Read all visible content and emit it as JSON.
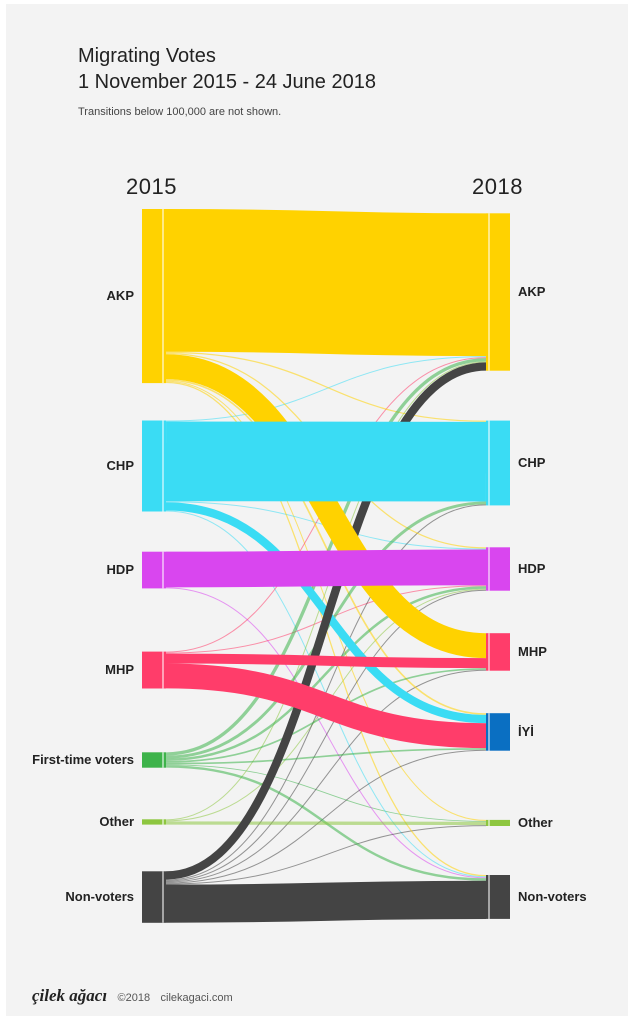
{
  "header": {
    "title_line1": "Migrating Votes",
    "title_line2": "1 November 2015 - 24 June 2018",
    "subtitle": "Transitions below 100,000 are not shown."
  },
  "footer": {
    "logo": "çilek ağacı",
    "copyright": "©2018",
    "site": "cilekagaci.com"
  },
  "chart_data": {
    "type": "sankey",
    "title": "Migrating Votes",
    "subtitle": "Transitions below 100,000 are not shown.",
    "columns": [
      "2015",
      "2018"
    ],
    "sources": [
      {
        "name": "AKP",
        "color": "#FFD200"
      },
      {
        "name": "CHP",
        "color": "#3ADCF4"
      },
      {
        "name": "HDP",
        "color": "#D946EF"
      },
      {
        "name": "MHP",
        "color": "#FF3D6A"
      },
      {
        "name": "First-time voters",
        "color": "#3DB34A"
      },
      {
        "name": "Other",
        "color": "#8DC63F"
      },
      {
        "name": "Non-voters",
        "color": "#444444"
      }
    ],
    "targets": [
      {
        "name": "AKP",
        "color": "#FFD200"
      },
      {
        "name": "CHP",
        "color": "#3ADCF4"
      },
      {
        "name": "HDP",
        "color": "#D946EF"
      },
      {
        "name": "MHP",
        "color": "#FF3D6A"
      },
      {
        "name": "İYİ",
        "color": "#0A6FC2"
      },
      {
        "name": "Other",
        "color": "#8DC63F"
      },
      {
        "name": "Non-voters",
        "color": "#444444"
      }
    ],
    "flows": [
      {
        "source": "AKP",
        "target": "AKP",
        "value": 17.2
      },
      {
        "source": "AKP",
        "target": "CHP",
        "value": 0.15
      },
      {
        "source": "AKP",
        "target": "HDP",
        "value": 0.15
      },
      {
        "source": "AKP",
        "target": "MHP",
        "value": 3.0
      },
      {
        "source": "AKP",
        "target": "İYİ",
        "value": 0.2
      },
      {
        "source": "AKP",
        "target": "Other",
        "value": 0.12
      },
      {
        "source": "AKP",
        "target": "Non-voters",
        "value": 0.15
      },
      {
        "source": "CHP",
        "target": "AKP",
        "value": 0.12
      },
      {
        "source": "CHP",
        "target": "CHP",
        "value": 9.6
      },
      {
        "source": "CHP",
        "target": "HDP",
        "value": 0.12
      },
      {
        "source": "CHP",
        "target": "İYİ",
        "value": 1.0
      },
      {
        "source": "CHP",
        "target": "Non-voters",
        "value": 0.12
      },
      {
        "source": "HDP",
        "target": "HDP",
        "value": 4.3
      },
      {
        "source": "HDP",
        "target": "Non-voters",
        "value": 0.12
      },
      {
        "source": "MHP",
        "target": "AKP",
        "value": 0.12
      },
      {
        "source": "MHP",
        "target": "HDP",
        "value": 0.12
      },
      {
        "source": "MHP",
        "target": "MHP",
        "value": 1.2
      },
      {
        "source": "MHP",
        "target": "İYİ",
        "value": 3.0
      },
      {
        "source": "First-time voters",
        "target": "AKP",
        "value": 0.4
      },
      {
        "source": "First-time voters",
        "target": "CHP",
        "value": 0.35
      },
      {
        "source": "First-time voters",
        "target": "HDP",
        "value": 0.3
      },
      {
        "source": "First-time voters",
        "target": "MHP",
        "value": 0.2
      },
      {
        "source": "First-time voters",
        "target": "İYİ",
        "value": 0.2
      },
      {
        "source": "First-time voters",
        "target": "Other",
        "value": 0.1
      },
      {
        "source": "First-time voters",
        "target": "Non-voters",
        "value": 0.3
      },
      {
        "source": "Other",
        "target": "AKP",
        "value": 0.12
      },
      {
        "source": "Other",
        "target": "HDP",
        "value": 0.12
      },
      {
        "source": "Other",
        "target": "Other",
        "value": 0.4
      },
      {
        "source": "Non-voters",
        "target": "AKP",
        "value": 1.0
      },
      {
        "source": "Non-voters",
        "target": "CHP",
        "value": 0.12
      },
      {
        "source": "Non-voters",
        "target": "HDP",
        "value": 0.12
      },
      {
        "source": "Non-voters",
        "target": "MHP",
        "value": 0.12
      },
      {
        "source": "Non-voters",
        "target": "İYİ",
        "value": 0.12
      },
      {
        "source": "Non-voters",
        "target": "Other",
        "value": 0.12
      },
      {
        "source": "Non-voters",
        "target": "Non-voters",
        "value": 4.6
      }
    ]
  }
}
